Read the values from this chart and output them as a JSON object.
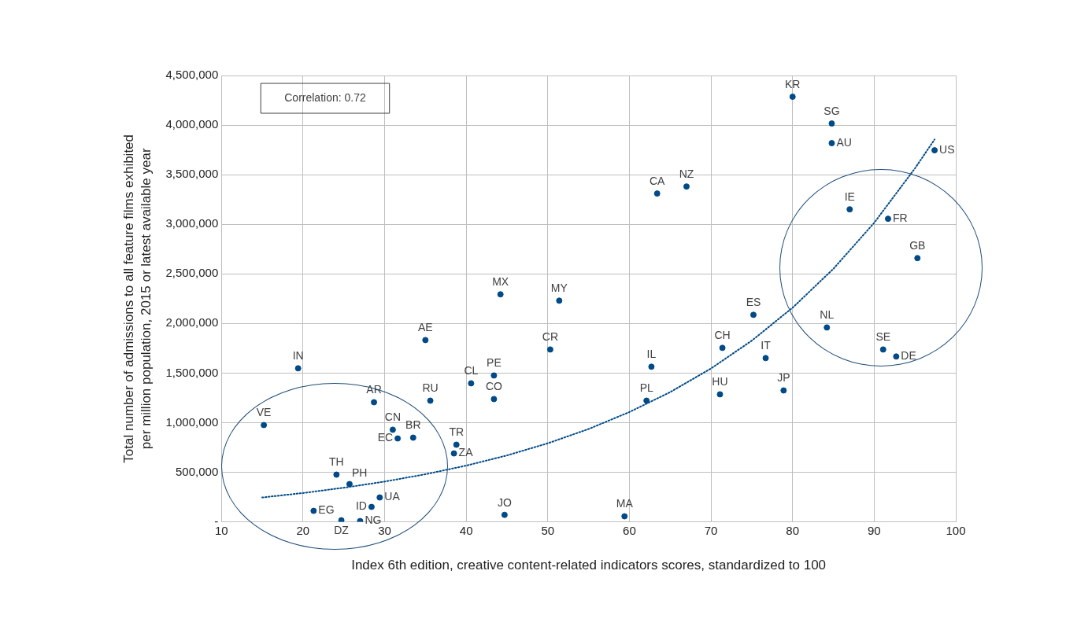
{
  "chart_data": {
    "type": "scatter",
    "xlabel": "Index 6th edition, creative content-related indicators scores, standardized to 100",
    "ylabel": "Total number of admissions to all feature films exhibited\nper million population, 2015 or latest available year",
    "xlim": [
      10,
      100
    ],
    "xticks": [
      10,
      20,
      30,
      40,
      50,
      60,
      70,
      80,
      90,
      100
    ],
    "ylim": [
      0,
      4500000
    ],
    "yticks": [
      {
        "value": 0,
        "label": "-"
      },
      {
        "value": 500000,
        "label": "500,000"
      },
      {
        "value": 1000000,
        "label": "1,000,000"
      },
      {
        "value": 1500000,
        "label": "1,500,000"
      },
      {
        "value": 2000000,
        "label": "2,000,000"
      },
      {
        "value": 2500000,
        "label": "2,500,000"
      },
      {
        "value": 3000000,
        "label": "3,000,000"
      },
      {
        "value": 3500000,
        "label": "3,500,000"
      },
      {
        "value": 4000000,
        "label": "4,000,000"
      },
      {
        "value": 4500000,
        "label": "4,500,000"
      }
    ],
    "grid": true,
    "legend": false,
    "marker": "circle",
    "series": [
      {
        "color": "#004a87",
        "x": [
          15.2,
          19.4,
          28.7,
          35.0,
          31.0,
          31.6,
          33.5,
          38.8,
          38.5,
          24.1,
          25.7,
          29.4,
          28.4,
          21.3,
          24.7,
          27.0,
          40.6,
          43.4,
          43.4,
          35.6,
          44.7,
          44.2,
          51.4,
          50.3,
          62.7,
          62.1,
          59.4,
          71.4,
          75.2,
          76.7,
          71.1,
          78.9,
          63.4,
          67.0,
          80.0,
          84.8,
          84.8,
          97.4,
          87.0,
          91.7,
          95.3,
          84.2,
          91.1,
          92.7
        ],
        "values": [
          976000,
          1548000,
          1206000,
          1833000,
          929000,
          841000,
          849000,
          778000,
          690000,
          476000,
          381000,
          246000,
          151000,
          111000,
          16000,
          8000,
          1397000,
          1476000,
          1238000,
          1222000,
          71000,
          2294000,
          2230000,
          1738000,
          1564000,
          1222000,
          56000,
          1754000,
          2087000,
          1651000,
          1286000,
          1325000,
          3310000,
          3381000,
          4286000,
          4016000,
          3818000,
          3746000,
          3151000,
          3056000,
          2659000,
          1960000,
          1738000,
          1667000
        ]
      },
      {
        "type": "line",
        "color": "#004a87",
        "line_style": "dotted",
        "marker": "none",
        "x": [
          15,
          20,
          25,
          30,
          35,
          40,
          45,
          50,
          55,
          60,
          65,
          70,
          75,
          80,
          85,
          90,
          95,
          97.4
        ],
        "values": [
          246000,
          291000,
          344000,
          406000,
          480000,
          567000,
          670000,
          792000,
          936000,
          1107000,
          1308000,
          1546000,
          1827000,
          2159000,
          2551000,
          3015000,
          3564000,
          3855000
        ]
      }
    ],
    "annotations": [
      "Correlation: 0.72",
      {
        "text": "VE",
        "x": 15.2,
        "y": 976000
      },
      {
        "text": "IN",
        "x": 19.4,
        "y": 1548000
      },
      {
        "text": "AR",
        "x": 28.7,
        "y": 1206000
      },
      {
        "text": "AE",
        "x": 35.0,
        "y": 1833000
      },
      {
        "text": "CN",
        "x": 31.0,
        "y": 929000
      },
      {
        "text": "EC",
        "x": 31.6,
        "y": 841000
      },
      {
        "text": "BR",
        "x": 33.5,
        "y": 849000
      },
      {
        "text": "TR",
        "x": 38.8,
        "y": 778000
      },
      {
        "text": "ZA",
        "x": 38.5,
        "y": 690000
      },
      {
        "text": "TH",
        "x": 24.1,
        "y": 476000
      },
      {
        "text": "PH",
        "x": 25.7,
        "y": 381000
      },
      {
        "text": "UA",
        "x": 29.4,
        "y": 246000
      },
      {
        "text": "ID",
        "x": 28.4,
        "y": 151000
      },
      {
        "text": "EG",
        "x": 21.3,
        "y": 111000
      },
      {
        "text": "DZ",
        "x": 24.7,
        "y": 16000
      },
      {
        "text": "NG",
        "x": 27.0,
        "y": 8000
      },
      {
        "text": "CL",
        "x": 40.6,
        "y": 1397000
      },
      {
        "text": "PE",
        "x": 43.4,
        "y": 1476000
      },
      {
        "text": "CO",
        "x": 43.4,
        "y": 1238000
      },
      {
        "text": "RU",
        "x": 35.6,
        "y": 1222000
      },
      {
        "text": "JO",
        "x": 44.7,
        "y": 71000
      },
      {
        "text": "MX",
        "x": 44.2,
        "y": 2294000
      },
      {
        "text": "MY",
        "x": 51.4,
        "y": 2230000
      },
      {
        "text": "CR",
        "x": 50.3,
        "y": 1738000
      },
      {
        "text": "IL",
        "x": 62.7,
        "y": 1564000
      },
      {
        "text": "PL",
        "x": 62.1,
        "y": 1222000
      },
      {
        "text": "MA",
        "x": 59.4,
        "y": 56000
      },
      {
        "text": "CH",
        "x": 71.4,
        "y": 1754000
      },
      {
        "text": "ES",
        "x": 75.2,
        "y": 2087000
      },
      {
        "text": "IT",
        "x": 76.7,
        "y": 1651000
      },
      {
        "text": "HU",
        "x": 71.1,
        "y": 1286000
      },
      {
        "text": "JP",
        "x": 78.9,
        "y": 1325000
      },
      {
        "text": "CA",
        "x": 63.4,
        "y": 3310000
      },
      {
        "text": "NZ",
        "x": 67.0,
        "y": 3381000
      },
      {
        "text": "KR",
        "x": 80.0,
        "y": 4286000
      },
      {
        "text": "SG",
        "x": 84.8,
        "y": 4016000
      },
      {
        "text": "AU",
        "x": 84.8,
        "y": 3818000
      },
      {
        "text": "US",
        "x": 97.4,
        "y": 3746000
      },
      {
        "text": "IE",
        "x": 87.0,
        "y": 3151000
      },
      {
        "text": "FR",
        "x": 91.7,
        "y": 3056000
      },
      {
        "text": "GB",
        "x": 95.3,
        "y": 2659000
      },
      {
        "text": "NL",
        "x": 84.2,
        "y": 1960000
      },
      {
        "text": "SE",
        "x": 91.1,
        "y": 1738000
      },
      {
        "text": "DE",
        "x": 92.7,
        "y": 1667000
      }
    ]
  }
}
